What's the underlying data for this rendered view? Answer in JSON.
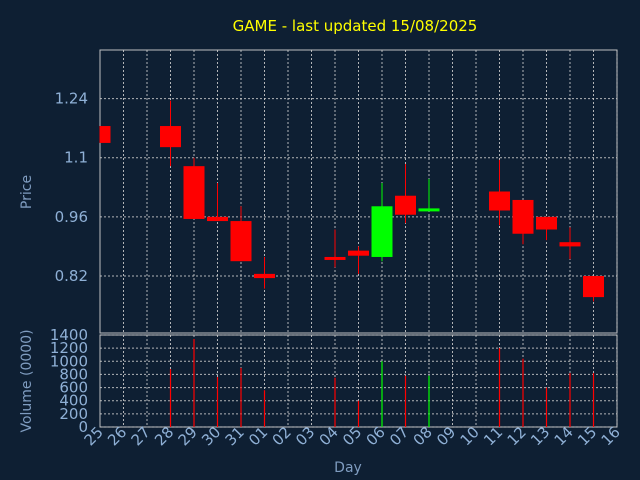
{
  "chart_data": {
    "type": "candlestick",
    "title": "GAME - last updated 15/08/2025",
    "xlabel": "Day",
    "colors": {
      "background": "#0e1f33",
      "title": "#ffff00",
      "axis_text": "#8fb0d6",
      "down": "#ff0000",
      "up": "#00ff00",
      "grid": "#d0d0d0"
    },
    "grid": true,
    "x_tick_labels": [
      "25",
      "26",
      "27",
      "28",
      "29",
      "30",
      "31",
      "01",
      "02",
      "03",
      "04",
      "05",
      "06",
      "07",
      "08",
      "09",
      "10",
      "11",
      "12",
      "13",
      "14",
      "15",
      "16"
    ],
    "price_panel": {
      "ylabel": "Price",
      "ylim": [
        0.685,
        1.355
      ],
      "y_ticks": [
        0.82,
        0.96,
        1.1,
        1.24
      ],
      "y_tick_labels": [
        "0.82",
        "0.96",
        "1.1",
        "1.24"
      ]
    },
    "volume_panel": {
      "ylabel": "Volume (0000)",
      "ylim": [
        0,
        1400
      ],
      "y_ticks": [
        0,
        200,
        400,
        600,
        800,
        1000,
        1200,
        1400
      ],
      "y_tick_labels": [
        "0",
        "200",
        "400",
        "600",
        "800",
        "1000",
        "1200",
        "1400"
      ]
    },
    "candles": [
      {
        "date": "25",
        "open": 1.175,
        "close": 1.135,
        "high": 1.175,
        "low": 1.135,
        "volume": 0
      },
      {
        "date": "28",
        "open": 1.175,
        "close": 1.125,
        "high": 1.235,
        "low": 1.08,
        "volume": 880
      },
      {
        "date": "29",
        "open": 1.08,
        "close": 0.955,
        "high": 1.1,
        "low": 0.955,
        "volume": 1340
      },
      {
        "date": "30",
        "open": 0.96,
        "close": 0.95,
        "high": 1.04,
        "low": 0.95,
        "volume": 760
      },
      {
        "date": "31",
        "open": 0.95,
        "close": 0.855,
        "high": 0.985,
        "low": 0.855,
        "volume": 900
      },
      {
        "date": "01",
        "open": 0.825,
        "close": 0.815,
        "high": 0.865,
        "low": 0.79,
        "volume": 560
      },
      {
        "date": "04",
        "open": 0.865,
        "close": 0.858,
        "high": 0.93,
        "low": 0.84,
        "volume": 750
      },
      {
        "date": "05",
        "open": 0.88,
        "close": 0.868,
        "high": 0.89,
        "low": 0.825,
        "volume": 400
      },
      {
        "date": "06",
        "open": 0.865,
        "close": 0.985,
        "high": 1.04,
        "low": 0.855,
        "volume": 1000
      },
      {
        "date": "07",
        "open": 1.01,
        "close": 0.965,
        "high": 1.085,
        "low": 0.945,
        "volume": 780
      },
      {
        "date": "08",
        "open": 0.975,
        "close": 0.98,
        "high": 1.05,
        "low": 0.975,
        "volume": 780
      },
      {
        "date": "11",
        "open": 1.02,
        "close": 0.975,
        "high": 1.095,
        "low": 0.94,
        "volume": 1200
      },
      {
        "date": "12",
        "open": 1.0,
        "close": 0.92,
        "high": 1.0,
        "low": 0.895,
        "volume": 1040
      },
      {
        "date": "13",
        "open": 0.96,
        "close": 0.93,
        "high": 0.96,
        "low": 0.905,
        "volume": 600
      },
      {
        "date": "14",
        "open": 0.9,
        "close": 0.89,
        "high": 0.935,
        "low": 0.86,
        "volume": 820
      },
      {
        "date": "15",
        "open": 0.82,
        "close": 0.77,
        "high": 0.82,
        "low": 0.76,
        "volume": 820
      }
    ]
  }
}
